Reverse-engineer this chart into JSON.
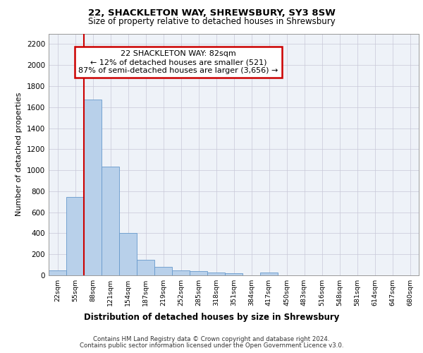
{
  "title1": "22, SHACKLETON WAY, SHREWSBURY, SY3 8SW",
  "title2": "Size of property relative to detached houses in Shrewsbury",
  "xlabel": "Distribution of detached houses by size in Shrewsbury",
  "ylabel": "Number of detached properties",
  "bar_labels": [
    "22sqm",
    "55sqm",
    "88sqm",
    "121sqm",
    "154sqm",
    "187sqm",
    "219sqm",
    "252sqm",
    "285sqm",
    "318sqm",
    "351sqm",
    "384sqm",
    "417sqm",
    "450sqm",
    "483sqm",
    "516sqm",
    "548sqm",
    "581sqm",
    "614sqm",
    "647sqm",
    "680sqm"
  ],
  "bar_values": [
    50,
    745,
    1670,
    1035,
    405,
    150,
    80,
    45,
    40,
    28,
    18,
    0,
    25,
    0,
    0,
    0,
    0,
    0,
    0,
    0,
    0
  ],
  "bar_color": "#b8d0ea",
  "bar_edge_color": "#6699cc",
  "ylim": [
    0,
    2300
  ],
  "yticks": [
    0,
    200,
    400,
    600,
    800,
    1000,
    1200,
    1400,
    1600,
    1800,
    2000,
    2200
  ],
  "annotation_text": "22 SHACKLETON WAY: 82sqm\n← 12% of detached houses are smaller (521)\n87% of semi-detached houses are larger (3,656) →",
  "annotation_box_color": "#ffffff",
  "annotation_box_edge_color": "#cc0000",
  "red_line_color": "#cc0000",
  "footer1": "Contains HM Land Registry data © Crown copyright and database right 2024.",
  "footer2": "Contains public sector information licensed under the Open Government Licence v3.0.",
  "plot_bg_color": "#eef2f8"
}
